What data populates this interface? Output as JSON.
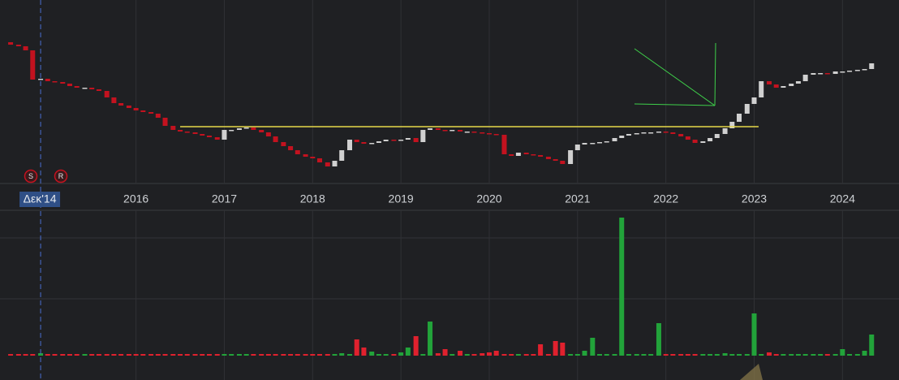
{
  "chart_data": {
    "type": "candlestick",
    "x": [
      2014.58,
      2014.67,
      2014.75,
      2014.83,
      2014.92,
      2015.0,
      2015.08,
      2015.17,
      2015.25,
      2015.33,
      2015.42,
      2015.5,
      2015.58,
      2015.67,
      2015.75,
      2015.83,
      2015.92,
      2016.0,
      2016.08,
      2016.17,
      2016.25,
      2016.33,
      2016.42,
      2016.5,
      2016.58,
      2016.67,
      2016.75,
      2016.83,
      2016.92,
      2017.0,
      2017.08,
      2017.17,
      2017.25,
      2017.33,
      2017.42,
      2017.5,
      2017.58,
      2017.67,
      2017.75,
      2017.83,
      2017.92,
      2018.0,
      2018.08,
      2018.17,
      2018.25,
      2018.33,
      2018.42,
      2018.5,
      2018.58,
      2018.67,
      2018.75,
      2018.83,
      2018.92,
      2019.0,
      2019.08,
      2019.17,
      2019.25,
      2019.33,
      2019.42,
      2019.5,
      2019.58,
      2019.67,
      2019.75,
      2019.83,
      2019.92,
      2020.0,
      2020.08,
      2020.17,
      2020.25,
      2020.33,
      2020.42,
      2020.5,
      2020.58,
      2020.67,
      2020.75,
      2020.83,
      2020.92,
      2021.0,
      2021.08,
      2021.17,
      2021.25,
      2021.33,
      2021.42,
      2021.5,
      2021.58,
      2021.67,
      2021.75,
      2021.83,
      2021.92,
      2022.0,
      2022.08,
      2022.17,
      2022.25,
      2022.33,
      2022.42,
      2022.5,
      2022.58,
      2022.67,
      2022.75,
      2022.83,
      2022.92,
      2023.0,
      2023.08,
      2023.17,
      2023.25,
      2023.33,
      2023.42,
      2023.5,
      2023.58,
      2023.67,
      2023.75,
      2023.83,
      2023.92,
      2024.0,
      2024.08,
      2024.17,
      2024.25,
      2024.33
    ],
    "open": [
      178,
      175,
      173,
      168,
      132,
      133,
      130,
      129,
      127,
      124,
      122,
      122,
      120,
      118,
      110,
      103,
      100,
      97,
      94,
      92,
      90,
      85,
      75,
      70,
      68,
      67,
      65,
      63,
      61,
      58,
      70,
      70,
      72,
      73,
      70,
      67,
      62,
      55,
      50,
      45,
      40,
      37,
      35,
      30,
      25,
      32,
      45,
      58,
      55,
      53,
      54,
      56,
      58,
      57,
      58,
      60,
      55,
      70,
      72,
      70,
      69,
      70,
      68,
      68,
      67,
      66,
      65,
      64,
      40,
      38,
      42,
      40,
      39,
      37,
      34,
      32,
      28,
      45,
      52,
      54,
      54,
      55,
      56,
      60,
      63,
      65,
      66,
      67,
      67,
      68,
      67,
      65,
      62,
      58,
      54,
      56,
      60,
      65,
      72,
      80,
      90,
      102,
      110,
      130,
      126,
      122,
      124,
      127,
      130,
      138,
      140,
      140,
      139,
      142,
      142,
      143,
      144,
      145
    ],
    "close": [
      175,
      173,
      168,
      132,
      133,
      130,
      129,
      127,
      124,
      122,
      122,
      120,
      118,
      110,
      103,
      100,
      97,
      94,
      92,
      90,
      85,
      75,
      70,
      68,
      67,
      65,
      63,
      61,
      58,
      70,
      70,
      72,
      73,
      70,
      67,
      62,
      55,
      50,
      45,
      40,
      37,
      35,
      30,
      25,
      32,
      45,
      58,
      55,
      53,
      54,
      56,
      58,
      57,
      58,
      60,
      55,
      70,
      72,
      70,
      69,
      70,
      68,
      68,
      67,
      66,
      65,
      64,
      40,
      38,
      42,
      40,
      39,
      37,
      34,
      32,
      28,
      45,
      52,
      54,
      54,
      55,
      56,
      60,
      63,
      65,
      66,
      67,
      67,
      68,
      67,
      65,
      62,
      58,
      54,
      56,
      60,
      65,
      72,
      80,
      90,
      102,
      110,
      130,
      126,
      122,
      124,
      127,
      130,
      138,
      140,
      140,
      139,
      142,
      142,
      143,
      144,
      145,
      152
    ],
    "volume": [
      2,
      2,
      2,
      2,
      3,
      2,
      2,
      2,
      2,
      2,
      2,
      2,
      2,
      2,
      2,
      2,
      2,
      2,
      2,
      2,
      2,
      2,
      2,
      2,
      2,
      2,
      2,
      2,
      2,
      2,
      2,
      2,
      2,
      2,
      2,
      2,
      2,
      2,
      2,
      2,
      2,
      2,
      2,
      2,
      2,
      3,
      2,
      20,
      10,
      5,
      2,
      2,
      2,
      4,
      10,
      24,
      2,
      42,
      3,
      8,
      2,
      6,
      2,
      2,
      3,
      4,
      6,
      2,
      2,
      2,
      2,
      2,
      14,
      2,
      18,
      16,
      2,
      2,
      6,
      22,
      2,
      2,
      2,
      170,
      2,
      2,
      2,
      2,
      40,
      2,
      2,
      2,
      2,
      2,
      2,
      2,
      2,
      3,
      2,
      2,
      2,
      52,
      2,
      4,
      2,
      2,
      2,
      2,
      2,
      2,
      2,
      2,
      2,
      8,
      2,
      2,
      6,
      26
    ],
    "up_color": "#d0d0d0",
    "down_color": "#c3121f",
    "volume_up_color": "#22a33a",
    "volume_down_color": "#e0212e",
    "xlim": [
      2014.46,
      2024.64
    ],
    "xticks": [
      2016,
      2017,
      2018,
      2019,
      2020,
      2021,
      2022,
      2023,
      2024
    ],
    "ylim": [
      0,
      230
    ],
    "volume_lim": [
      0,
      176
    ],
    "level": 74,
    "level_color": "#e6d84a",
    "crosshair": {
      "x": 2014.92,
      "label": "Δεκ'14"
    },
    "markers": [
      "S",
      "R"
    ],
    "grid": true
  }
}
